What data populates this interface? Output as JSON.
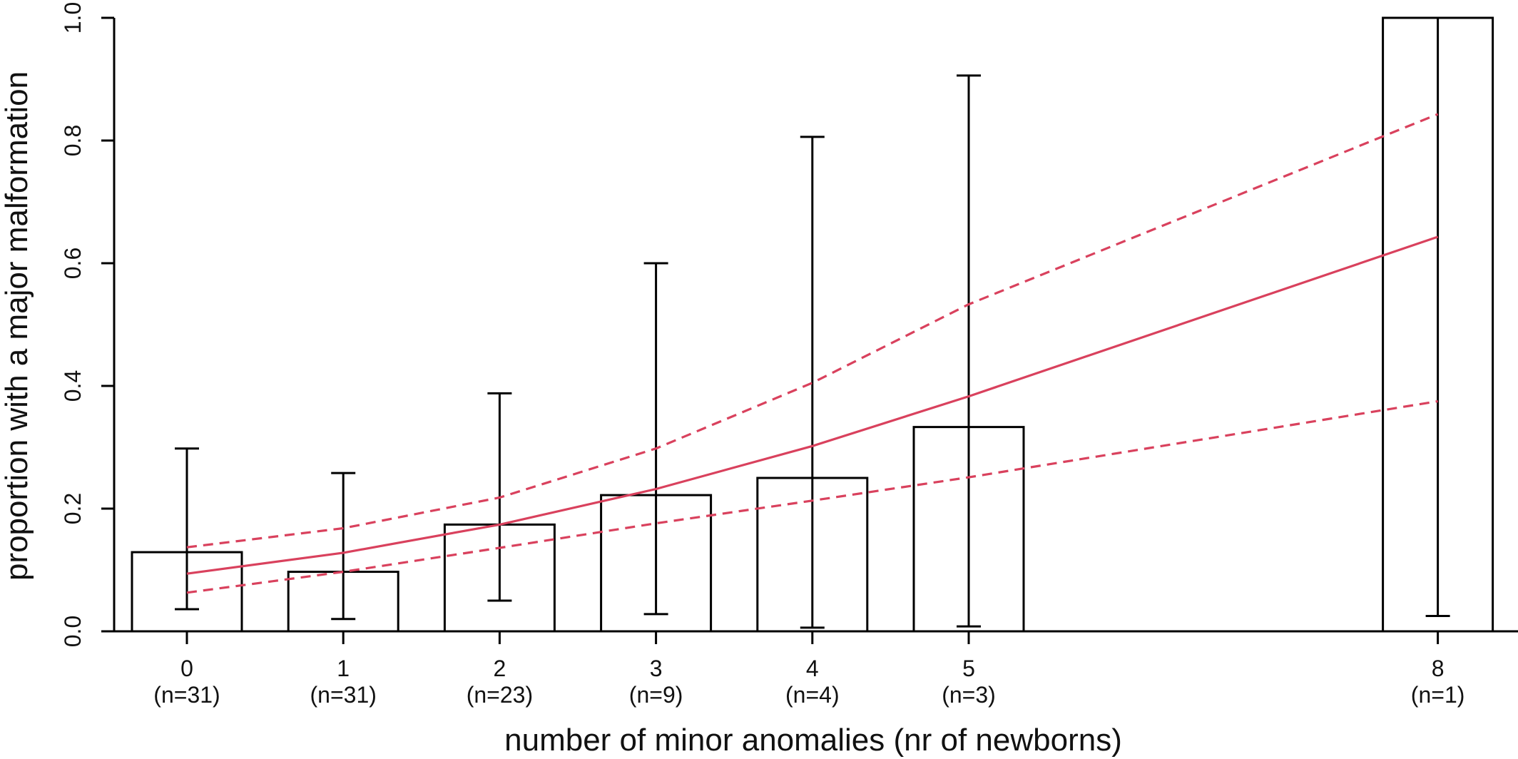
{
  "chart_data": {
    "type": "bar",
    "xlabel": "number of minor anomalies (nr of newborns)",
    "ylabel": "proportion with a major malformation",
    "ylim": [
      0,
      1
    ],
    "yticks": [
      "0.0",
      "0.2",
      "0.4",
      "0.6",
      "0.8",
      "1.0"
    ],
    "categories": [
      {
        "x": 0,
        "label": "0",
        "n_label": "(n=31)",
        "value": 0.129,
        "ci_low": 0.036,
        "ci_high": 0.298
      },
      {
        "x": 1,
        "label": "1",
        "n_label": "(n=31)",
        "value": 0.097,
        "ci_low": 0.02,
        "ci_high": 0.258
      },
      {
        "x": 2,
        "label": "2",
        "n_label": "(n=23)",
        "value": 0.174,
        "ci_low": 0.05,
        "ci_high": 0.388
      },
      {
        "x": 3,
        "label": "3",
        "n_label": "(n=9)",
        "value": 0.222,
        "ci_low": 0.028,
        "ci_high": 0.6
      },
      {
        "x": 4,
        "label": "4",
        "n_label": "(n=4)",
        "value": 0.25,
        "ci_low": 0.006,
        "ci_high": 0.806
      },
      {
        "x": 5,
        "label": "5",
        "n_label": "(n=3)",
        "value": 0.333,
        "ci_low": 0.008,
        "ci_high": 0.906
      },
      {
        "x": 8,
        "label": "8",
        "n_label": "(n=1)",
        "value": 1.0,
        "ci_low": 0.025,
        "ci_high": 1.0
      }
    ],
    "fit": {
      "color": "#d9415d",
      "x": [
        0,
        1,
        2,
        3,
        4,
        5,
        8
      ],
      "fitted": [
        0.094,
        0.128,
        0.174,
        0.232,
        0.302,
        0.383,
        0.643
      ],
      "upper": [
        0.137,
        0.168,
        0.218,
        0.298,
        0.405,
        0.533,
        0.843
      ],
      "lower": [
        0.063,
        0.097,
        0.136,
        0.176,
        0.213,
        0.251,
        0.375
      ]
    }
  }
}
